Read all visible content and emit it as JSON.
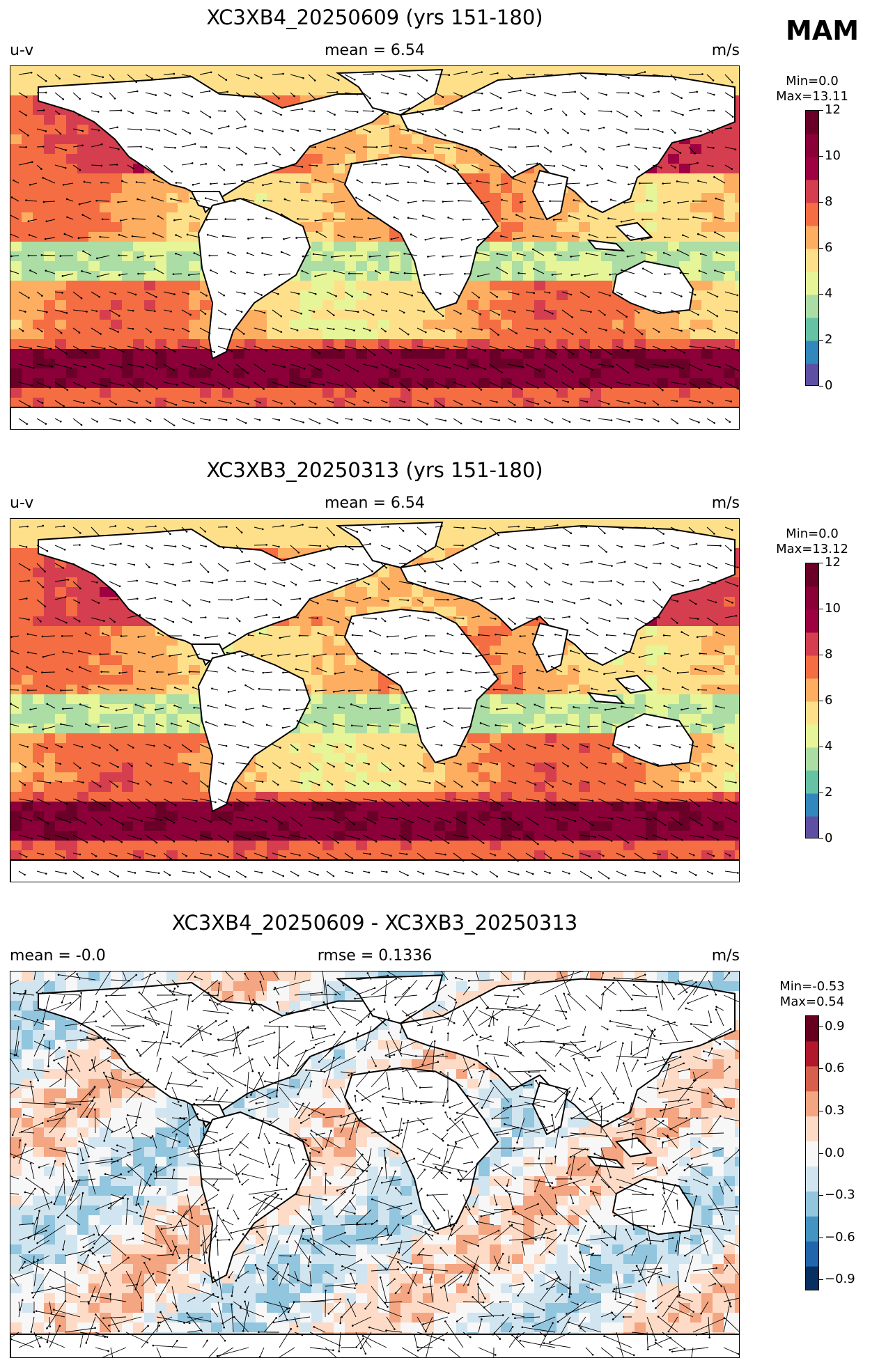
{
  "season": "MAM",
  "panels": [
    {
      "title": "XC3XB4_20250609 (yrs 151-180)",
      "left_label": "u-v",
      "center_label": "mean = 6.54",
      "right_label": "m/s",
      "min_label": "Min=0.0",
      "max_label": "Max=13.11",
      "colorbar": {
        "ticks": [
          "0",
          "2",
          "4",
          "6",
          "8",
          "10",
          "12"
        ],
        "colors": [
          "#5e4fa2",
          "#3288bd",
          "#66c2a5",
          "#abdda4",
          "#e6f598",
          "#fee08b",
          "#fdae61",
          "#f46d43",
          "#d53e4f",
          "#9e0142",
          "#8b0038",
          "#6a0028"
        ],
        "palette": "Spectral_r"
      }
    },
    {
      "title": "XC3XB3_20250313 (yrs 151-180)",
      "left_label": "u-v",
      "center_label": "mean = 6.54",
      "right_label": "m/s",
      "min_label": "Min=0.0",
      "max_label": "Max=13.12",
      "colorbar": {
        "ticks": [
          "0",
          "2",
          "4",
          "6",
          "8",
          "10",
          "12"
        ],
        "colors": [
          "#5e4fa2",
          "#3288bd",
          "#66c2a5",
          "#abdda4",
          "#e6f598",
          "#fee08b",
          "#fdae61",
          "#f46d43",
          "#d53e4f",
          "#9e0142",
          "#8b0038",
          "#6a0028"
        ],
        "palette": "Spectral_r"
      }
    },
    {
      "title": "XC3XB4_20250609 - XC3XB3_20250313",
      "left_label": "mean = -0.0",
      "center_label": "rmse = 0.1336",
      "right_label": "m/s",
      "min_label": "Min=-0.53",
      "max_label": "Max=0.54",
      "colorbar": {
        "ticks": [
          "0.9",
          "0.6",
          "0.3",
          "0.0",
          "−0.3",
          "−0.6",
          "−0.9"
        ],
        "colors": [
          "#053061",
          "#2166ac",
          "#4393c3",
          "#92c5de",
          "#d1e5f0",
          "#f7f7f7",
          "#fddbc7",
          "#f4a582",
          "#d6604d",
          "#b2182b",
          "#67001f"
        ],
        "palette": "RdBu_r"
      }
    }
  ]
}
